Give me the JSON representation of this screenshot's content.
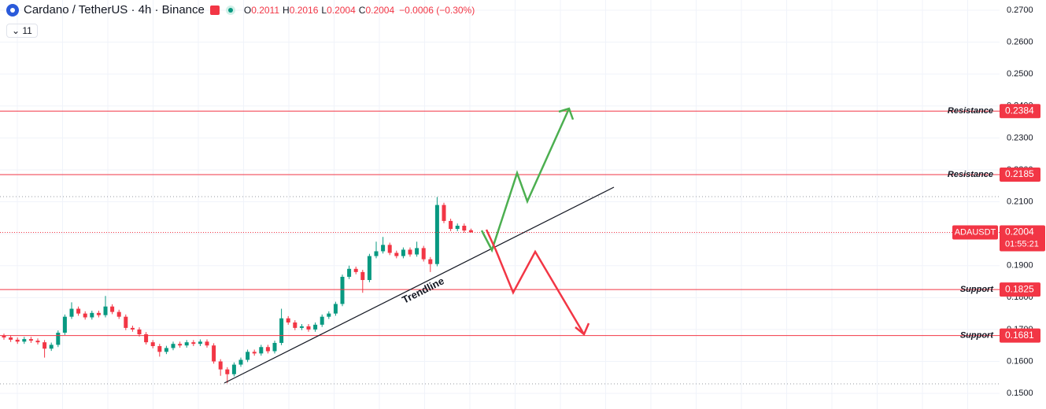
{
  "header": {
    "title": "Cardano / TetherUS · 4h · Binance",
    "ohlc": [
      {
        "label": "O",
        "value": 0.2011
      },
      {
        "label": "H",
        "value": 0.2016
      },
      {
        "label": "L",
        "value": 0.2004
      },
      {
        "label": "C",
        "value": 0.2004
      }
    ],
    "change": "−0.0006 (−0.30%)",
    "indicators": "11"
  },
  "chart_data": {
    "type": "candlestick",
    "up_color": "#089981",
    "down_color": "#f23645",
    "grid": true,
    "ylim": [
      0.1451,
      0.2732
    ],
    "yticks": [
      {
        "value": 0.27,
        "label": "0.2700"
      },
      {
        "value": 0.26,
        "label": "0.2600"
      },
      {
        "value": 0.25,
        "label": "0.2500"
      },
      {
        "value": 0.24,
        "label": "0.2400"
      },
      {
        "value": 0.23,
        "label": "0.2300"
      },
      {
        "value": 0.22,
        "label": "0.2200"
      },
      {
        "value": 0.21,
        "label": "0.2100"
      },
      {
        "value": 0.2,
        "label": "0.2000"
      },
      {
        "value": 0.19,
        "label": "0.1900"
      },
      {
        "value": 0.18,
        "label": "0.1800"
      },
      {
        "value": 0.17,
        "label": "0.1700"
      },
      {
        "value": 0.16,
        "label": "0.1600"
      },
      {
        "value": 0.15,
        "label": "0.1500"
      }
    ],
    "open": [
      0.168,
      0.1675,
      0.1668,
      0.1662,
      0.167,
      0.1665,
      0.166,
      0.164,
      0.1652,
      0.169,
      0.174,
      0.1765,
      0.175,
      0.1738,
      0.1752,
      0.1745,
      0.1772,
      0.1755,
      0.174,
      0.1705,
      0.17,
      0.1685,
      0.166,
      0.1648,
      0.163,
      0.1642,
      0.1655,
      0.165,
      0.166,
      0.1655,
      0.1662,
      0.165,
      0.16,
      0.1575,
      0.156,
      0.159,
      0.1605,
      0.163,
      0.1625,
      0.1645,
      0.1632,
      0.1658,
      0.1735,
      0.1722,
      0.1705,
      0.171,
      0.17,
      0.1715,
      0.174,
      0.175,
      0.178,
      0.1865,
      0.189,
      0.188,
      0.1855,
      0.193,
      0.1945,
      0.1965,
      0.194,
      0.193,
      0.195,
      0.1935,
      0.1955,
      0.192,
      0.1905,
      0.209,
      0.204,
      0.2015,
      0.2025,
      0.2011
    ],
    "high": [
      0.1687,
      0.1682,
      0.1675,
      0.1677,
      0.1677,
      0.1672,
      0.1667,
      0.1659,
      0.1697,
      0.1747,
      0.1785,
      0.1772,
      0.1757,
      0.1759,
      0.1759,
      0.1805,
      0.1779,
      0.1762,
      0.1747,
      0.1712,
      0.1707,
      0.1692,
      0.1667,
      0.1655,
      0.1649,
      0.1662,
      0.1662,
      0.1667,
      0.1667,
      0.1669,
      0.1669,
      0.1657,
      0.1607,
      0.1582,
      0.1597,
      0.1612,
      0.1637,
      0.1637,
      0.1652,
      0.1652,
      0.1665,
      0.1765,
      0.1742,
      0.1729,
      0.1717,
      0.1717,
      0.1722,
      0.1747,
      0.1757,
      0.1787,
      0.1872,
      0.19,
      0.1897,
      0.1887,
      0.1937,
      0.1975,
      0.199,
      0.1972,
      0.1947,
      0.1957,
      0.1957,
      0.1975,
      0.1962,
      0.1927,
      0.2115,
      0.2097,
      0.2047,
      0.2032,
      0.2032,
      0.2016
    ],
    "low": [
      0.1668,
      0.1661,
      0.1655,
      0.1655,
      0.1658,
      0.1653,
      0.1612,
      0.1633,
      0.1645,
      0.1683,
      0.1733,
      0.1743,
      0.1731,
      0.1731,
      0.1738,
      0.1738,
      0.1748,
      0.1733,
      0.1698,
      0.1693,
      0.1678,
      0.1653,
      0.1641,
      0.1615,
      0.1623,
      0.1635,
      0.1643,
      0.1643,
      0.1648,
      0.1648,
      0.1643,
      0.1593,
      0.1555,
      0.1532,
      0.1553,
      0.1583,
      0.1598,
      0.1618,
      0.1618,
      0.1625,
      0.1625,
      0.1651,
      0.1715,
      0.1698,
      0.1698,
      0.1693,
      0.1693,
      0.1708,
      0.1733,
      0.1743,
      0.1773,
      0.1858,
      0.1873,
      0.1815,
      0.1848,
      0.1923,
      0.1938,
      0.1933,
      0.1923,
      0.1923,
      0.1928,
      0.1928,
      0.1913,
      0.188,
      0.1898,
      0.2033,
      0.2008,
      0.2008,
      0.2003,
      0.2004
    ],
    "close": [
      0.1675,
      0.1668,
      0.1662,
      0.167,
      0.1665,
      0.166,
      0.164,
      0.1652,
      0.169,
      0.174,
      0.1765,
      0.175,
      0.1738,
      0.1752,
      0.1745,
      0.1772,
      0.1755,
      0.174,
      0.1705,
      0.17,
      0.1685,
      0.166,
      0.1648,
      0.163,
      0.1642,
      0.1655,
      0.165,
      0.166,
      0.1655,
      0.1662,
      0.165,
      0.16,
      0.1575,
      0.156,
      0.159,
      0.1605,
      0.163,
      0.1625,
      0.1645,
      0.1632,
      0.1658,
      0.1735,
      0.1722,
      0.1705,
      0.171,
      0.17,
      0.1715,
      0.174,
      0.175,
      0.178,
      0.1865,
      0.189,
      0.188,
      0.1855,
      0.193,
      0.1945,
      0.1965,
      0.194,
      0.193,
      0.195,
      0.1935,
      0.1955,
      0.192,
      0.1905,
      0.209,
      0.204,
      0.2015,
      0.2025,
      0.201,
      0.2004
    ],
    "levels": [
      {
        "name": "Resistance",
        "value": 0.2384
      },
      {
        "name": "Resistance",
        "value": 0.2185
      },
      {
        "name": "Support",
        "value": 0.1825
      },
      {
        "name": "Support",
        "value": 0.1681
      }
    ],
    "level_color": "#f23645",
    "current_price": {
      "name": "ADAUSDT",
      "value": 0.2004,
      "countdown": "01:55:21"
    },
    "annotation": "Trendline"
  }
}
